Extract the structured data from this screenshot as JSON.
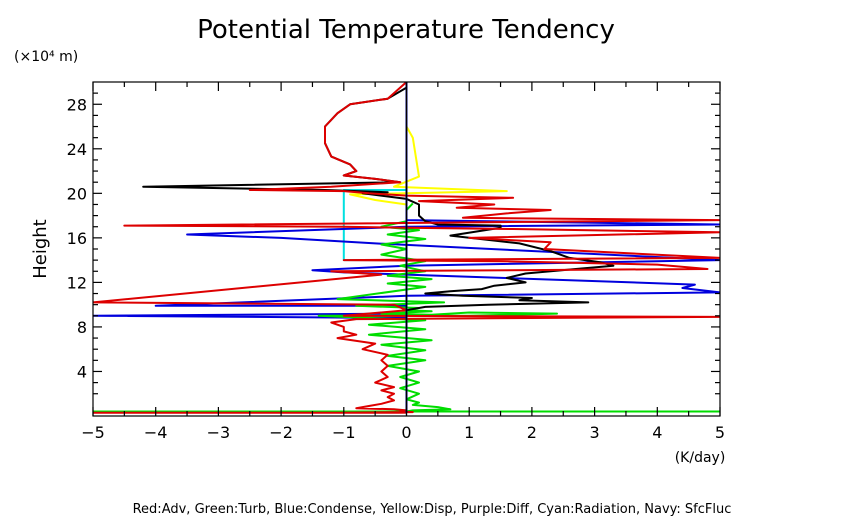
{
  "chart_data": {
    "type": "line",
    "title": "Potential Temperature Tendency",
    "ylabel": "Height",
    "yunit": "(×10⁴ m)",
    "xunit": "(K/day)",
    "xlim": [
      -5,
      5
    ],
    "ylim": [
      0,
      30
    ],
    "xticks": [
      -5,
      -4,
      -3,
      -2,
      -1,
      0,
      1,
      2,
      3,
      4,
      5
    ],
    "yticks": [
      4,
      8,
      12,
      16,
      20,
      24,
      28
    ],
    "legend_text": "Red:Adv, Green:Turb, Blue:Condense, Yellow:Disp, Purple:Diff, Cyan:Radiation, Navy: SfcFluc",
    "grid": false,
    "series": [
      {
        "name": "Yellow",
        "color": "#ffff00",
        "x": [
          0.0,
          0.0,
          0.1,
          0.2,
          -0.2,
          1.6,
          -0.9,
          -0.5,
          0.0,
          0.0
        ],
        "y": [
          30.0,
          26.0,
          25.0,
          21.5,
          20.6,
          20.2,
          19.9,
          19.4,
          19.0,
          0.3
        ]
      },
      {
        "name": "Cyan",
        "color": "#00e0e0",
        "x": [
          0.0,
          -1.0,
          -1.0,
          0.0,
          0.0
        ],
        "y": [
          20.3,
          20.3,
          14.0,
          14.0,
          0.3
        ]
      },
      {
        "name": "Blue",
        "color": "#0000dd",
        "x": [
          0.0,
          0.0,
          0.0,
          5.0,
          0.0,
          -3.5,
          -2.0,
          -0.5,
          5.0,
          0.0,
          -1.5,
          -1.0,
          0.0,
          4.6,
          4.4,
          5.0,
          0.0,
          -4.0,
          0.0,
          0.0,
          -5.0,
          0.0,
          0.0
        ],
        "y": [
          19.2,
          18.0,
          17.6,
          17.2,
          17.0,
          16.3,
          16.0,
          15.5,
          14.0,
          13.5,
          13.1,
          12.9,
          12.7,
          11.8,
          11.5,
          11.1,
          10.8,
          9.9,
          9.9,
          9.2,
          9.0,
          8.8,
          0.3
        ]
      },
      {
        "name": "Green",
        "color": "#00dd00",
        "x": [
          0.1,
          0.0,
          0.0,
          -0.4,
          0.2,
          -0.3,
          0.3,
          -0.4,
          0.0,
          -0.4,
          0.3,
          -0.1,
          0.3,
          -0.3,
          0.4,
          -0.3,
          0.3,
          -1.1,
          0.6,
          -0.8,
          0.2,
          0.0,
          0.4,
          -0.4,
          0.4,
          1.0,
          2.4,
          1.0,
          -1.4,
          0.3,
          -0.6,
          0.3,
          -0.6,
          0.4,
          -0.4,
          0.3,
          -0.3,
          0.3,
          -0.3,
          0.2,
          -0.1,
          0.2,
          -0.1,
          0.2,
          0.0,
          0.2,
          0.1,
          0.5,
          0.7,
          0.1,
          0.0,
          -5.0,
          5.0
        ],
        "y": [
          19.1,
          18.5,
          17.5,
          17.0,
          16.7,
          16.3,
          15.9,
          15.4,
          15.0,
          14.5,
          13.9,
          13.5,
          13.0,
          12.6,
          12.3,
          11.9,
          11.6,
          10.5,
          10.2,
          9.9,
          9.7,
          9.5,
          9.4,
          9.2,
          9.1,
          9.3,
          9.2,
          9.0,
          9.0,
          8.6,
          8.2,
          7.8,
          7.3,
          6.8,
          6.4,
          5.9,
          5.4,
          5.0,
          4.5,
          4.0,
          3.5,
          3.0,
          2.5,
          2.0,
          1.5,
          1.2,
          1.0,
          0.8,
          0.6,
          0.5,
          0.4,
          0.4,
          0.4
        ]
      },
      {
        "name": "Black",
        "color": "#000000",
        "x": [
          0.0,
          -0.3,
          -0.9,
          -1.1,
          -1.3,
          -1.3,
          -1.2,
          -0.9,
          -0.8,
          -1.0,
          -0.5,
          -0.1,
          -4.2,
          -1.3,
          -0.3,
          -0.7,
          0.0,
          0.2,
          0.2,
          0.3,
          0.5,
          1.5,
          1.5,
          0.7,
          1.8,
          2.3,
          2.6,
          3.1,
          3.3,
          2.7,
          1.9,
          1.6,
          1.9,
          1.4,
          1.2,
          0.7,
          0.3,
          0.9,
          2.0,
          1.8,
          2.9,
          1.3,
          0.3,
          0.0,
          0.0
        ],
        "y": [
          29.5,
          28.5,
          28.0,
          27.2,
          26.0,
          24.5,
          23.3,
          22.6,
          22.0,
          21.6,
          21.3,
          21.0,
          20.6,
          20.3,
          20.1,
          20.0,
          19.5,
          19.0,
          18.0,
          17.5,
          17.2,
          17.1,
          16.9,
          16.2,
          15.5,
          14.8,
          14.2,
          13.8,
          13.5,
          13.2,
          12.8,
          12.4,
          12.0,
          11.7,
          11.4,
          11.2,
          11.0,
          10.8,
          10.6,
          10.4,
          10.2,
          10.0,
          9.8,
          9.5,
          0.3
        ]
      },
      {
        "name": "Red",
        "color": "#dd0000",
        "x": [
          0.0,
          -0.3,
          -0.9,
          -1.1,
          -1.3,
          -1.3,
          -1.2,
          -0.9,
          -0.8,
          -1.0,
          -0.5,
          -0.1,
          -1.2,
          -2.5,
          -1.0,
          -0.6,
          0.0,
          1.7,
          0.2,
          1.4,
          0.8,
          2.3,
          1.6,
          0.9,
          5.0,
          -4.5,
          -1.0,
          0.0,
          1.7,
          5.0,
          1.0,
          2.3,
          2.2,
          5.0,
          -1.0,
          1.5,
          4.0,
          4.8,
          -1.2,
          -0.4,
          -5.0,
          -0.2,
          0.0,
          -1.0,
          5.0,
          -0.8,
          -1.2,
          -1.0,
          -1.0,
          -0.8,
          -1.1,
          -0.5,
          -0.7,
          -0.3,
          -0.4,
          -0.3,
          -0.4,
          -0.3,
          -0.5,
          -0.2,
          -0.4,
          -0.2,
          -0.3,
          -0.2,
          -0.4,
          -0.6,
          -0.8,
          -0.2,
          0.0,
          -0.1,
          0.1,
          -1.0,
          -5.0,
          0.0
        ],
        "y": [
          30.0,
          28.5,
          28.0,
          27.2,
          26.0,
          24.5,
          23.3,
          22.6,
          22.0,
          21.6,
          21.3,
          21.0,
          20.6,
          20.3,
          20.2,
          20.0,
          19.8,
          19.6,
          19.3,
          19.0,
          18.7,
          18.5,
          18.2,
          17.8,
          17.6,
          17.1,
          17.0,
          16.9,
          16.8,
          16.5,
          16.0,
          15.6,
          15.0,
          14.2,
          14.0,
          13.9,
          13.6,
          13.2,
          13.0,
          12.7,
          10.2,
          10.0,
          9.5,
          9.0,
          8.9,
          8.7,
          8.4,
          8.0,
          7.6,
          7.3,
          7.0,
          6.5,
          6.0,
          5.5,
          5.0,
          4.5,
          4.0,
          3.5,
          3.0,
          2.6,
          2.3,
          2.0,
          1.7,
          1.4,
          1.1,
          0.9,
          0.7,
          0.6,
          0.5,
          0.4,
          0.35,
          0.3,
          0.3,
          0.3
        ]
      },
      {
        "name": "Navy",
        "color": "#000080",
        "x": [
          0.0,
          0.0
        ],
        "y": [
          0.3,
          30.0
        ]
      }
    ]
  }
}
